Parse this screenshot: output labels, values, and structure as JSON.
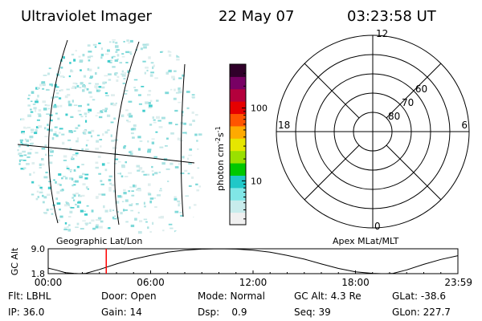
{
  "header": {
    "title": "Ultraviolet Imager",
    "date": "22 May 07",
    "time": "03:23:58 UT"
  },
  "panels": {
    "left_label": "Geographic Lat/Lon",
    "right_label": "Apex MLat/MLT"
  },
  "colorbar": {
    "label_base": "photon cm",
    "label_exp1": "-2",
    "label_mid": "s",
    "label_exp2": "-1",
    "ticks": [
      {
        "label": "100",
        "value": 100
      },
      {
        "label": "10",
        "value": 10
      }
    ],
    "colors": [
      "#f0f0f0",
      "#c8ecec",
      "#80e6e6",
      "#20c8c8",
      "#00c800",
      "#9ae000",
      "#e6e600",
      "#ffaa00",
      "#ff5500",
      "#e60000",
      "#b4003c",
      "#780064",
      "#30002a"
    ]
  },
  "polar_plot": {
    "mlt_labels": {
      "top": "12",
      "left": "18",
      "right": "6",
      "bottom": "0"
    },
    "lat_labels": [
      "60",
      "70",
      "80"
    ],
    "lat_values": [
      60,
      70,
      80
    ]
  },
  "chart_data": {
    "type": "line",
    "ylabel": "GC Alt",
    "yticks": [
      "9.0",
      "1.8"
    ],
    "ylim": [
      1.8,
      9.0
    ],
    "xticks": [
      "00:00",
      "06:00",
      "12:00",
      "18:00",
      "23:59"
    ],
    "xlim_hours": [
      0,
      24
    ],
    "current_time_hours": 3.4,
    "series": [
      {
        "x": [
          0,
          0.5,
          1,
          1.5,
          1.8,
          2.2,
          3,
          4,
          5,
          6,
          7,
          8,
          9,
          10,
          11,
          12,
          13,
          14,
          15,
          16,
          17,
          18,
          19,
          19.5,
          19.8,
          20.2,
          21,
          22,
          23,
          24
        ],
        "y": [
          3.4,
          2.8,
          2.1,
          1.9,
          1.8,
          1.9,
          3.0,
          4.6,
          6.0,
          7.1,
          8.0,
          8.6,
          8.9,
          9.0,
          8.9,
          8.6,
          8.0,
          7.1,
          6.0,
          4.6,
          3.3,
          2.3,
          1.9,
          1.8,
          1.8,
          1.9,
          2.9,
          4.5,
          5.9,
          7.0
        ]
      }
    ]
  },
  "info": {
    "flt": "Flt: LBHL",
    "ip": "IP: 36.0",
    "door": "Door: Open",
    "gain": "Gain: 14",
    "mode": "Mode: Normal",
    "dsp": "Dsp:    0.9",
    "gcalt": "GC Alt: 4.3 Re",
    "seq": "Seq: 39",
    "glat": "GLat: -38.6",
    "glon": "GLon: 227.7"
  }
}
